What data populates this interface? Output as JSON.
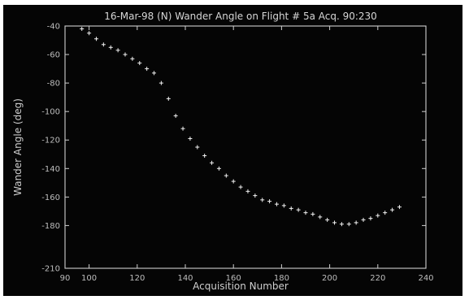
{
  "chart_data": {
    "type": "scatter",
    "title": "16-Mar-98 (N) Wander Angle on Flight # 5a Acq. 90:230",
    "xlabel": "Acquisition Number",
    "ylabel": "Wander Angle (deg)",
    "xlim": [
      90,
      240
    ],
    "ylim": [
      -210,
      -40
    ],
    "x_ticks": [
      90,
      100,
      120,
      140,
      160,
      180,
      200,
      220,
      240
    ],
    "x_tick_labels": [
      "90",
      "100",
      "120",
      "140",
      "160",
      "180",
      "200",
      "220",
      "240"
    ],
    "y_ticks": [
      -40,
      -60,
      -80,
      -100,
      -120,
      -140,
      -160,
      -180,
      -210
    ],
    "y_tick_labels": [
      "-40",
      "-60",
      "-80",
      "-100",
      "-120",
      "-140",
      "-160",
      "-180",
      "-210"
    ],
    "grid": false,
    "marker": "plus",
    "series": [
      {
        "x": [
          97,
          100,
          103,
          106,
          109,
          112,
          115,
          118,
          121,
          124,
          127,
          130,
          133,
          136,
          139,
          142,
          145,
          148,
          151,
          154,
          157,
          160,
          163,
          166,
          169,
          172,
          175,
          178,
          181,
          184,
          187,
          190,
          193,
          196,
          199,
          202,
          205,
          208,
          211,
          214,
          217,
          220,
          223,
          226,
          229
        ],
        "y": [
          -42,
          -45,
          -49,
          -53,
          -55,
          -57,
          -60,
          -63,
          -66,
          -70,
          -73,
          -80,
          -91,
          -103,
          -112,
          -119,
          -125,
          -131,
          -136,
          -140,
          -145,
          -149,
          -153,
          -156,
          -159,
          -162,
          -163,
          -165,
          -166,
          -168,
          -169,
          -171,
          -172,
          -174,
          -176,
          -178,
          -179,
          -179,
          -178,
          -176,
          -175,
          -173,
          -171,
          -169,
          -167
        ]
      }
    ]
  }
}
